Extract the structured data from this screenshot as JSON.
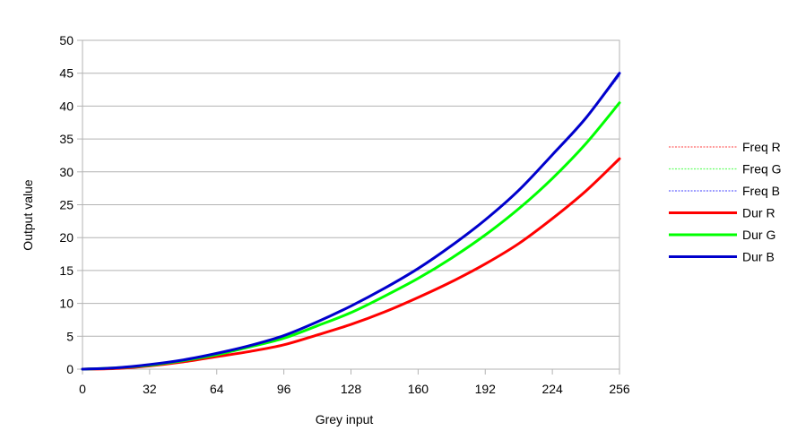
{
  "chart_data": {
    "type": "line",
    "title": "",
    "xlabel": "Grey input",
    "ylabel": "Output value",
    "xlim": [
      0,
      256
    ],
    "ylim": [
      0,
      50
    ],
    "x_ticks": [
      "0",
      "32",
      "64",
      "96",
      "128",
      "160",
      "192",
      "224",
      "256"
    ],
    "y_ticks": [
      "0",
      "5",
      "10",
      "15",
      "20",
      "25",
      "30",
      "35",
      "40",
      "45",
      "50"
    ],
    "grid": "horizontal",
    "legend_position": "right",
    "x": [
      0,
      16,
      32,
      48,
      64,
      80,
      96,
      112,
      128,
      144,
      160,
      176,
      192,
      208,
      224,
      240,
      256
    ],
    "series": [
      {
        "name": "Freq R",
        "style": "dotted",
        "color": "#ff6666",
        "values": [
          0,
          0.1,
          0.5,
          1.1,
          1.9,
          2.7,
          3.7,
          5.2,
          6.8,
          8.7,
          10.9,
          13.3,
          16.0,
          19.1,
          22.9,
          27.1,
          31.8
        ]
      },
      {
        "name": "Freq G",
        "style": "dotted",
        "color": "#66ff66",
        "values": [
          0,
          0.2,
          0.6,
          1.3,
          2.2,
          3.4,
          4.7,
          6.6,
          8.6,
          11.1,
          13.8,
          16.9,
          20.4,
          24.4,
          29.0,
          34.3,
          40.3
        ]
      },
      {
        "name": "Freq B",
        "style": "dotted",
        "color": "#6666ff",
        "values": [
          0,
          0.2,
          0.7,
          1.4,
          2.4,
          3.6,
          5.1,
          7.2,
          9.6,
          12.3,
          15.3,
          18.8,
          22.7,
          27.2,
          32.6,
          38.2,
          44.6
        ]
      },
      {
        "name": "Dur R",
        "style": "solid",
        "color": "#ff0000",
        "values": [
          0,
          0.1,
          0.5,
          1.1,
          1.9,
          2.7,
          3.7,
          5.2,
          6.8,
          8.7,
          10.9,
          13.3,
          16.0,
          19.1,
          22.9,
          27.1,
          32.0
        ]
      },
      {
        "name": "Dur G",
        "style": "solid",
        "color": "#00ff00",
        "values": [
          0,
          0.2,
          0.6,
          1.3,
          2.2,
          3.4,
          4.7,
          6.6,
          8.6,
          11.1,
          13.8,
          16.9,
          20.4,
          24.4,
          29.0,
          34.3,
          40.5
        ]
      },
      {
        "name": "Dur B",
        "style": "solid",
        "color": "#0000cc",
        "values": [
          0,
          0.2,
          0.7,
          1.4,
          2.4,
          3.6,
          5.1,
          7.2,
          9.6,
          12.3,
          15.3,
          18.8,
          22.7,
          27.2,
          32.6,
          38.2,
          45.0
        ]
      }
    ]
  }
}
